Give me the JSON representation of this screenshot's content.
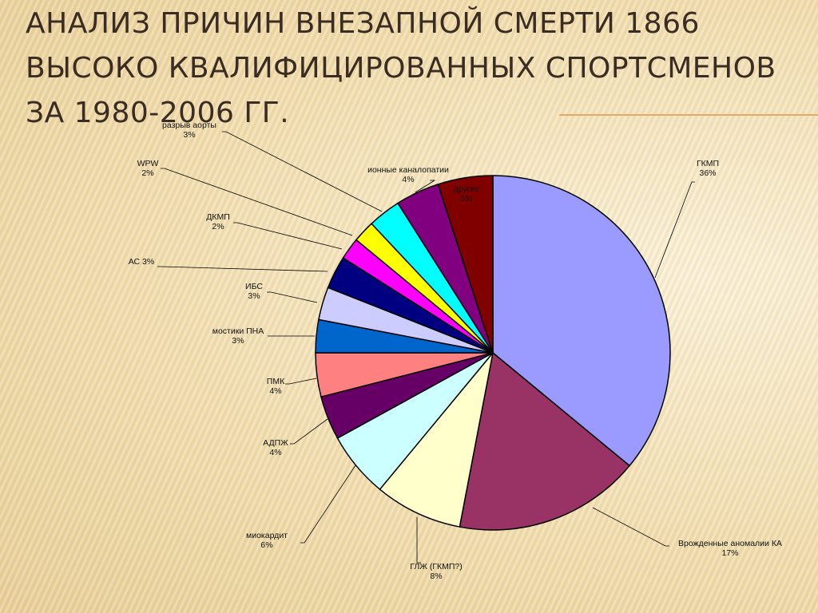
{
  "slide": {
    "title": "Анализ причин внезапной смерти 1866 высоко квалифицированных спортсменов за 1980-2006 гг."
  },
  "chart_data": {
    "type": "pie",
    "title": "",
    "start_angle_deg": 0,
    "direction": "clockwise",
    "slices": [
      {
        "name": "ГКМП",
        "value": 36,
        "label": "36%",
        "color": "#9b9bff"
      },
      {
        "name": "Врожденные аномалии КА",
        "value": 17,
        "label": "17%",
        "color": "#993366"
      },
      {
        "name": "ГЛЖ (ГКМП?)",
        "value": 8,
        "label": "8%",
        "color": "#ffffcc"
      },
      {
        "name": "миокардит",
        "value": 6,
        "label": "6%",
        "color": "#ccffff"
      },
      {
        "name": "АДПЖ",
        "value": 4,
        "label": "4%",
        "color": "#660066"
      },
      {
        "name": "ПМК",
        "value": 4,
        "label": "4%",
        "color": "#ff8080"
      },
      {
        "name": "мостики ПНА",
        "value": 3,
        "label": "3%",
        "color": "#0066cc"
      },
      {
        "name": "ИБС",
        "value": 3,
        "label": "3%",
        "color": "#ccccff"
      },
      {
        "name": "АС",
        "value": 3,
        "label": "3%",
        "color": "#000080"
      },
      {
        "name": "ДКМП",
        "value": 2,
        "label": "2%",
        "color": "#ff00ff"
      },
      {
        "name": "WPW",
        "value": 2,
        "label": "2%",
        "color": "#ffff00"
      },
      {
        "name": "разрыв аорты",
        "value": 3,
        "label": "3%",
        "color": "#00ffff"
      },
      {
        "name": "ионные каналопатии",
        "value": 4,
        "label": "4%",
        "color": "#800080"
      },
      {
        "name": "другие",
        "value": 5,
        "label": "5%",
        "color": "#800000"
      }
    ]
  }
}
